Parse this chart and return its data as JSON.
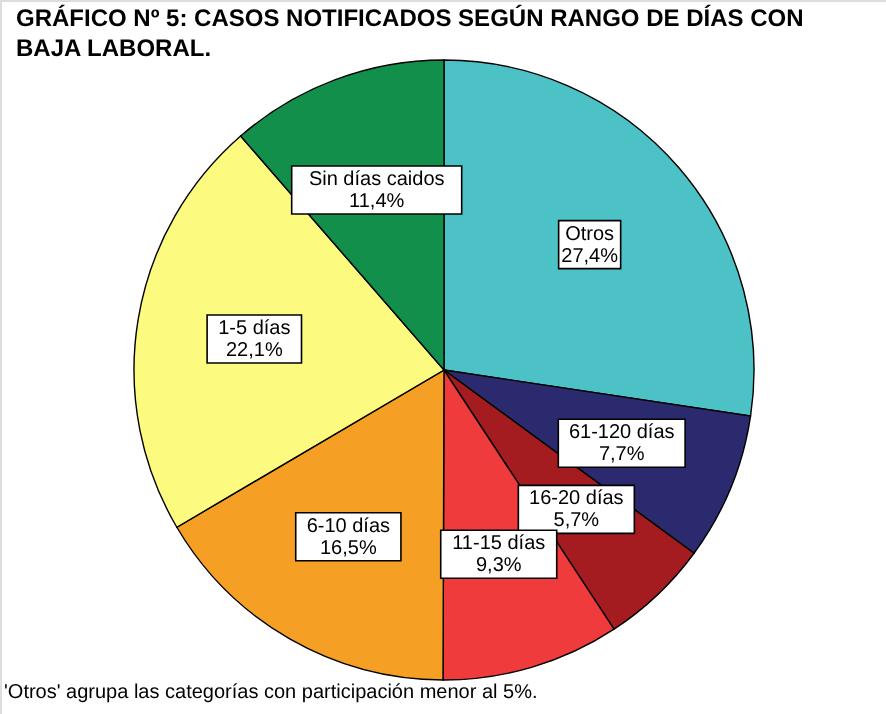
{
  "chart_data": {
    "type": "pie",
    "title": [
      "GRÁFICO Nº 5: CASOS NOTIFICADOS SEGÚN RANGO DE DÍAS CON",
      "BAJA LABORAL."
    ],
    "categories": [
      "Otros",
      "61-120 días",
      "16-20 días",
      "11-15 días",
      "6-10 días",
      "1-5 días",
      "Sin días caidos"
    ],
    "values": [
      27.4,
      7.7,
      5.7,
      9.3,
      16.5,
      22.1,
      11.4
    ],
    "value_labels": [
      "27,4%",
      "7,7%",
      "5,7%",
      "9,3%",
      "16,5%",
      "22,1%",
      "11,4%"
    ],
    "colors": [
      "#4cc2c6",
      "#2b2a6f",
      "#a41c20",
      "#ef3b3b",
      "#f5a024",
      "#fcfb80",
      "#128f4b"
    ],
    "annotations": [
      "'Otros' agrupa las categorías con participación menor al 5%."
    ]
  }
}
